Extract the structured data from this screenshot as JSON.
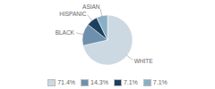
{
  "chart_data": {
    "type": "pie",
    "categories": [
      "WHITE",
      "BLACK",
      "HISPANIC",
      "ASIAN"
    ],
    "values": [
      71.4,
      14.3,
      7.1,
      7.1
    ],
    "value_labels": [
      "71.4%",
      "14.3%",
      "7.1%",
      "7.1%"
    ],
    "colors": [
      "#ccd9e3",
      "#6e90ad",
      "#1e4060",
      "#8aafc5"
    ],
    "legend": "bottom"
  }
}
